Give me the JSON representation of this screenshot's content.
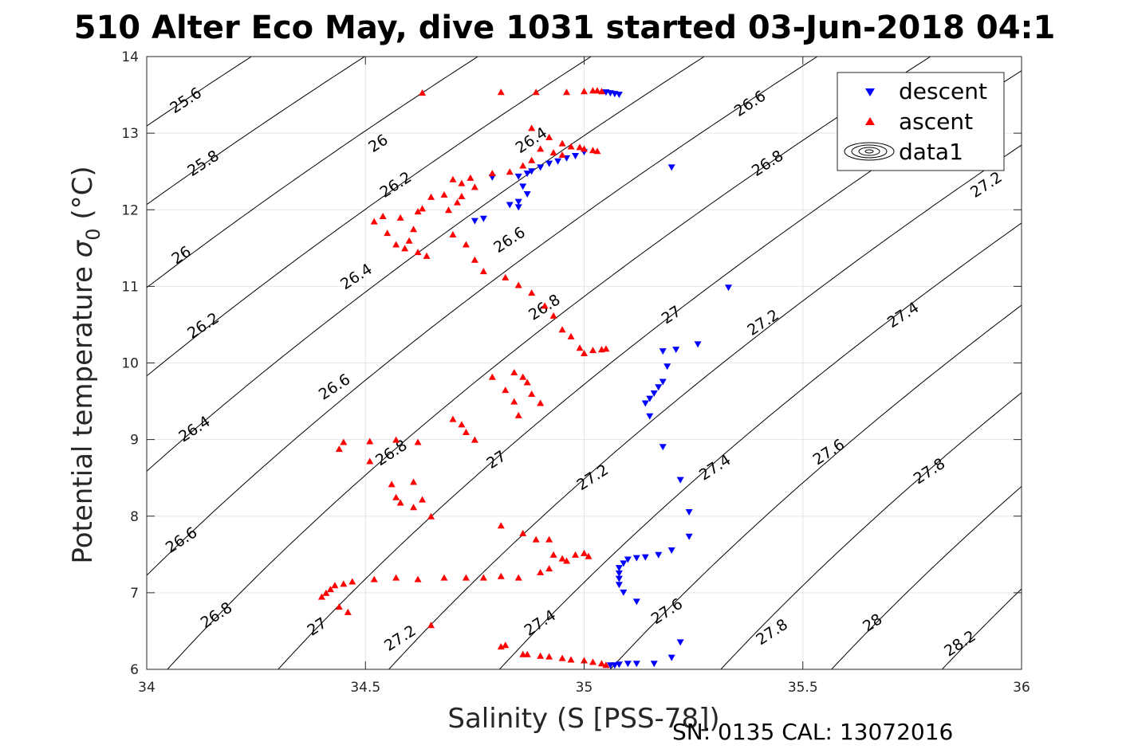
{
  "chart_data": {
    "type": "scatter",
    "title": "510 Alter Eco May, dive 1031 started 03-Jun-2018 04:1",
    "xlabel": "Salinity (S [PSS-78])",
    "ylabel_main": "Potential temperature ",
    "ylabel_sigma": "σ",
    "ylabel_sub": "0",
    "ylabel_unit": " (°C)",
    "footnote": "SN: 0135  CAL: 13072016",
    "xlim": [
      34,
      36
    ],
    "ylim": [
      6,
      14
    ],
    "x_ticks": [
      34,
      34.5,
      35,
      35.5,
      36
    ],
    "x_tick_labels": [
      "34",
      "34.5",
      "35",
      "35.5",
      "36"
    ],
    "y_ticks": [
      6,
      7,
      8,
      9,
      10,
      11,
      12,
      13,
      14
    ],
    "y_tick_labels": [
      "6",
      "7",
      "8",
      "9",
      "10",
      "11",
      "12",
      "13",
      "14"
    ],
    "grid": true,
    "legend_position": "top-right",
    "legend": [
      {
        "label": "descent",
        "marker": "triangle-down",
        "color": "#0000ff"
      },
      {
        "label": "ascent",
        "marker": "triangle-up",
        "color": "#ff0000"
      },
      {
        "label": "data1",
        "marker": "contour"
      }
    ],
    "contour_labels": [
      {
        "text": "25.6",
        "x": 34.09,
        "y": 13.42
      },
      {
        "text": "25.8",
        "x": 34.13,
        "y": 12.6
      },
      {
        "text": "26",
        "x": 34.08,
        "y": 11.4
      },
      {
        "text": "26.2",
        "x": 34.13,
        "y": 10.48
      },
      {
        "text": "26.4",
        "x": 34.11,
        "y": 9.13
      },
      {
        "text": "26.6",
        "x": 34.08,
        "y": 7.68
      },
      {
        "text": "26.8",
        "x": 34.16,
        "y": 6.7
      },
      {
        "text": "27",
        "x": 34.39,
        "y": 6.55
      },
      {
        "text": "27.2",
        "x": 34.58,
        "y": 6.4
      },
      {
        "text": "27.4",
        "x": 34.9,
        "y": 6.6
      },
      {
        "text": "27.6",
        "x": 35.19,
        "y": 6.75
      },
      {
        "text": "27.8",
        "x": 35.43,
        "y": 6.48
      },
      {
        "text": "28",
        "x": 35.66,
        "y": 6.6
      },
      {
        "text": "28.2",
        "x": 35.86,
        "y": 6.33
      },
      {
        "text": "26",
        "x": 34.53,
        "y": 12.86
      },
      {
        "text": "26.2",
        "x": 34.57,
        "y": 12.32
      },
      {
        "text": "26.4",
        "x": 34.88,
        "y": 12.9
      },
      {
        "text": "26.4",
        "x": 34.48,
        "y": 11.12
      },
      {
        "text": "26.6",
        "x": 35.38,
        "y": 13.38
      },
      {
        "text": "26.6",
        "x": 34.83,
        "y": 11.6
      },
      {
        "text": "26.6",
        "x": 34.43,
        "y": 9.68
      },
      {
        "text": "26.8",
        "x": 35.42,
        "y": 12.6
      },
      {
        "text": "26.8",
        "x": 34.91,
        "y": 10.72
      },
      {
        "text": "26.8",
        "x": 34.56,
        "y": 8.82
      },
      {
        "text": "27",
        "x": 35.2,
        "y": 10.62
      },
      {
        "text": "27",
        "x": 34.8,
        "y": 8.73
      },
      {
        "text": "27.2",
        "x": 35.41,
        "y": 10.52
      },
      {
        "text": "27.2",
        "x": 35.02,
        "y": 8.5
      },
      {
        "text": "27.4",
        "x": 35.73,
        "y": 10.62
      },
      {
        "text": "27.4",
        "x": 35.3,
        "y": 8.63
      },
      {
        "text": "27.6",
        "x": 35.56,
        "y": 8.83
      },
      {
        "text": "27.8",
        "x": 35.79,
        "y": 8.58
      },
      {
        "text": "27.2",
        "x": 35.92,
        "y": 12.32
      }
    ],
    "series": [
      {
        "name": "descent",
        "marker": "triangle-down",
        "color": "#0000ff",
        "points": [
          [
            35.05,
            13.53
          ],
          [
            35.06,
            13.52
          ],
          [
            35.07,
            13.51
          ],
          [
            35.08,
            13.5
          ],
          [
            35.0,
            12.75
          ],
          [
            34.98,
            12.7
          ],
          [
            34.96,
            12.67
          ],
          [
            34.94,
            12.63
          ],
          [
            34.92,
            12.6
          ],
          [
            34.9,
            12.55
          ],
          [
            34.88,
            12.5
          ],
          [
            34.87,
            12.47
          ],
          [
            34.85,
            12.43
          ],
          [
            34.86,
            12.3
          ],
          [
            34.87,
            12.2
          ],
          [
            34.85,
            12.1
          ],
          [
            34.83,
            12.06
          ],
          [
            34.85,
            12.03
          ],
          [
            34.79,
            12.42
          ],
          [
            34.77,
            11.88
          ],
          [
            34.75,
            11.85
          ],
          [
            35.2,
            12.55
          ],
          [
            35.33,
            10.98
          ],
          [
            35.26,
            10.24
          ],
          [
            35.21,
            10.17
          ],
          [
            35.18,
            10.15
          ],
          [
            35.19,
            9.95
          ],
          [
            35.18,
            9.75
          ],
          [
            35.17,
            9.68
          ],
          [
            35.16,
            9.6
          ],
          [
            35.15,
            9.53
          ],
          [
            35.14,
            9.47
          ],
          [
            35.15,
            9.3
          ],
          [
            35.18,
            8.9
          ],
          [
            35.22,
            8.47
          ],
          [
            35.24,
            8.05
          ],
          [
            35.24,
            7.73
          ],
          [
            35.2,
            7.55
          ],
          [
            35.17,
            7.49
          ],
          [
            35.14,
            7.46
          ],
          [
            35.12,
            7.45
          ],
          [
            35.1,
            7.43
          ],
          [
            35.09,
            7.38
          ],
          [
            35.08,
            7.32
          ],
          [
            35.08,
            7.25
          ],
          [
            35.08,
            7.18
          ],
          [
            35.08,
            7.1
          ],
          [
            35.09,
            7.0
          ],
          [
            35.12,
            6.88
          ],
          [
            35.22,
            6.35
          ],
          [
            35.2,
            6.15
          ],
          [
            35.16,
            6.07
          ],
          [
            35.12,
            6.07
          ],
          [
            35.1,
            6.07
          ],
          [
            35.08,
            6.06
          ],
          [
            35.07,
            6.05
          ],
          [
            35.06,
            6.05
          ]
        ]
      },
      {
        "name": "ascent",
        "marker": "triangle-up",
        "color": "#ff0000",
        "points": [
          [
            34.63,
            13.53
          ],
          [
            34.81,
            13.54
          ],
          [
            34.89,
            13.54
          ],
          [
            34.96,
            13.54
          ],
          [
            35.0,
            13.55
          ],
          [
            35.02,
            13.56
          ],
          [
            35.03,
            13.56
          ],
          [
            35.04,
            13.55
          ],
          [
            34.88,
            13.07
          ],
          [
            34.92,
            12.95
          ],
          [
            34.95,
            12.87
          ],
          [
            34.97,
            12.83
          ],
          [
            34.99,
            12.82
          ],
          [
            35.0,
            12.8
          ],
          [
            35.02,
            12.78
          ],
          [
            35.03,
            12.77
          ],
          [
            34.9,
            12.8
          ],
          [
            34.93,
            12.75
          ],
          [
            34.95,
            12.72
          ],
          [
            34.88,
            12.65
          ],
          [
            34.86,
            12.58
          ],
          [
            34.83,
            12.5
          ],
          [
            34.79,
            12.48
          ],
          [
            34.74,
            12.42
          ],
          [
            34.7,
            12.4
          ],
          [
            34.72,
            12.35
          ],
          [
            34.75,
            12.3
          ],
          [
            34.68,
            12.2
          ],
          [
            34.72,
            12.18
          ],
          [
            34.65,
            12.17
          ],
          [
            34.71,
            12.1
          ],
          [
            34.69,
            12.0
          ],
          [
            34.63,
            12.02
          ],
          [
            34.62,
            11.98
          ],
          [
            34.58,
            11.9
          ],
          [
            34.61,
            11.75
          ],
          [
            34.6,
            11.6
          ],
          [
            34.54,
            11.92
          ],
          [
            34.52,
            11.85
          ],
          [
            34.55,
            11.7
          ],
          [
            34.57,
            11.55
          ],
          [
            34.59,
            11.5
          ],
          [
            34.62,
            11.45
          ],
          [
            34.64,
            11.4
          ],
          [
            34.7,
            11.68
          ],
          [
            34.73,
            11.55
          ],
          [
            34.75,
            11.35
          ],
          [
            34.77,
            11.2
          ],
          [
            34.82,
            11.12
          ],
          [
            34.85,
            11.02
          ],
          [
            34.88,
            10.92
          ],
          [
            34.91,
            10.75
          ],
          [
            34.93,
            10.62
          ],
          [
            34.95,
            10.44
          ],
          [
            34.97,
            10.35
          ],
          [
            34.99,
            10.2
          ],
          [
            35.0,
            10.13
          ],
          [
            35.02,
            10.17
          ],
          [
            35.04,
            10.18
          ],
          [
            35.05,
            10.19
          ],
          [
            34.84,
            9.88
          ],
          [
            34.86,
            9.82
          ],
          [
            34.87,
            9.75
          ],
          [
            34.88,
            9.6
          ],
          [
            34.9,
            9.48
          ],
          [
            34.79,
            9.82
          ],
          [
            34.82,
            9.65
          ],
          [
            34.84,
            9.5
          ],
          [
            34.85,
            9.32
          ],
          [
            34.7,
            9.27
          ],
          [
            34.72,
            9.2
          ],
          [
            34.73,
            9.1
          ],
          [
            34.62,
            8.97
          ],
          [
            34.75,
            9.0
          ],
          [
            34.57,
            9.0
          ],
          [
            34.51,
            8.98
          ],
          [
            34.45,
            8.97
          ],
          [
            34.44,
            8.88
          ],
          [
            34.51,
            8.72
          ],
          [
            34.56,
            8.42
          ],
          [
            34.61,
            8.45
          ],
          [
            34.57,
            8.25
          ],
          [
            34.58,
            8.18
          ],
          [
            34.61,
            8.12
          ],
          [
            34.63,
            8.22
          ],
          [
            34.65,
            8.0
          ],
          [
            34.81,
            7.88
          ],
          [
            34.86,
            7.78
          ],
          [
            34.89,
            7.7
          ],
          [
            34.92,
            7.7
          ],
          [
            34.93,
            7.5
          ],
          [
            34.95,
            7.45
          ],
          [
            34.96,
            7.42
          ],
          [
            34.98,
            7.5
          ],
          [
            35.0,
            7.52
          ],
          [
            35.01,
            7.48
          ],
          [
            34.92,
            7.32
          ],
          [
            34.9,
            7.27
          ],
          [
            34.85,
            7.2
          ],
          [
            34.81,
            7.22
          ],
          [
            34.77,
            7.2
          ],
          [
            34.73,
            7.2
          ],
          [
            34.68,
            7.2
          ],
          [
            34.62,
            7.18
          ],
          [
            34.57,
            7.2
          ],
          [
            34.52,
            7.18
          ],
          [
            34.47,
            7.15
          ],
          [
            34.45,
            7.12
          ],
          [
            34.43,
            7.1
          ],
          [
            34.42,
            7.05
          ],
          [
            34.41,
            7.0
          ],
          [
            34.4,
            6.95
          ],
          [
            34.44,
            6.82
          ],
          [
            34.46,
            6.75
          ],
          [
            34.65,
            6.58
          ],
          [
            34.82,
            6.32
          ],
          [
            34.81,
            6.3
          ],
          [
            34.86,
            6.2
          ],
          [
            34.87,
            6.2
          ],
          [
            34.9,
            6.18
          ],
          [
            34.92,
            6.17
          ],
          [
            34.95,
            6.15
          ],
          [
            34.97,
            6.13
          ],
          [
            35.0,
            6.12
          ],
          [
            35.02,
            6.1
          ],
          [
            35.04,
            6.08
          ],
          [
            35.05,
            6.06
          ]
        ]
      }
    ]
  }
}
